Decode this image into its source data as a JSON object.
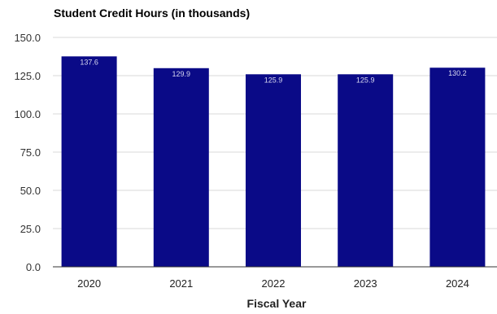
{
  "chart_data": {
    "type": "bar",
    "title": "Student Credit Hours (in thousands)",
    "xlabel": "Fiscal Year",
    "ylabel": "",
    "categories": [
      "2020",
      "2021",
      "2022",
      "2023",
      "2024"
    ],
    "values": [
      137.6,
      129.9,
      125.9,
      125.9,
      130.2
    ],
    "data_labels": [
      "137.6",
      "129.9",
      "125.9",
      "125.9",
      "130.2"
    ],
    "yticks": [
      "0.0",
      "25.0",
      "50.0",
      "75.0",
      "100.0",
      "125.0",
      "150.0"
    ],
    "ylim": [
      0,
      150
    ],
    "grid": true,
    "bar_color": "#0a0a87",
    "legend": "none"
  }
}
